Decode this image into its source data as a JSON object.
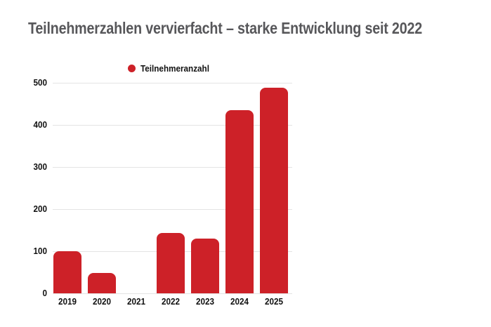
{
  "header": {
    "title": "Teilnehmerzahlen vervierfacht – starke Entwicklung seit 2022"
  },
  "legend": {
    "label": "Teilnehmeranzahl"
  },
  "chart_data": {
    "type": "bar",
    "title": "Teilnehmerzahlen vervierfacht – starke Entwicklung seit 2022",
    "categories": [
      "2019",
      "2020",
      "2021",
      "2022",
      "2023",
      "2024",
      "2025"
    ],
    "series": [
      {
        "name": "Teilnehmeranzahl",
        "values": [
          100,
          48,
          0,
          143,
          130,
          435,
          488
        ],
        "color": "#cd2128"
      }
    ],
    "xlabel": "",
    "ylabel": "",
    "ylim": [
      0,
      500
    ],
    "yticks": [
      0,
      100,
      200,
      300,
      400,
      500
    ],
    "grid": true,
    "legend_position": "top-left"
  },
  "colors": {
    "bar": "#cd2128",
    "title_text": "#57575a",
    "gridline": "#e4e4e4",
    "tick_text": "#111111",
    "background": "#ffffff"
  }
}
